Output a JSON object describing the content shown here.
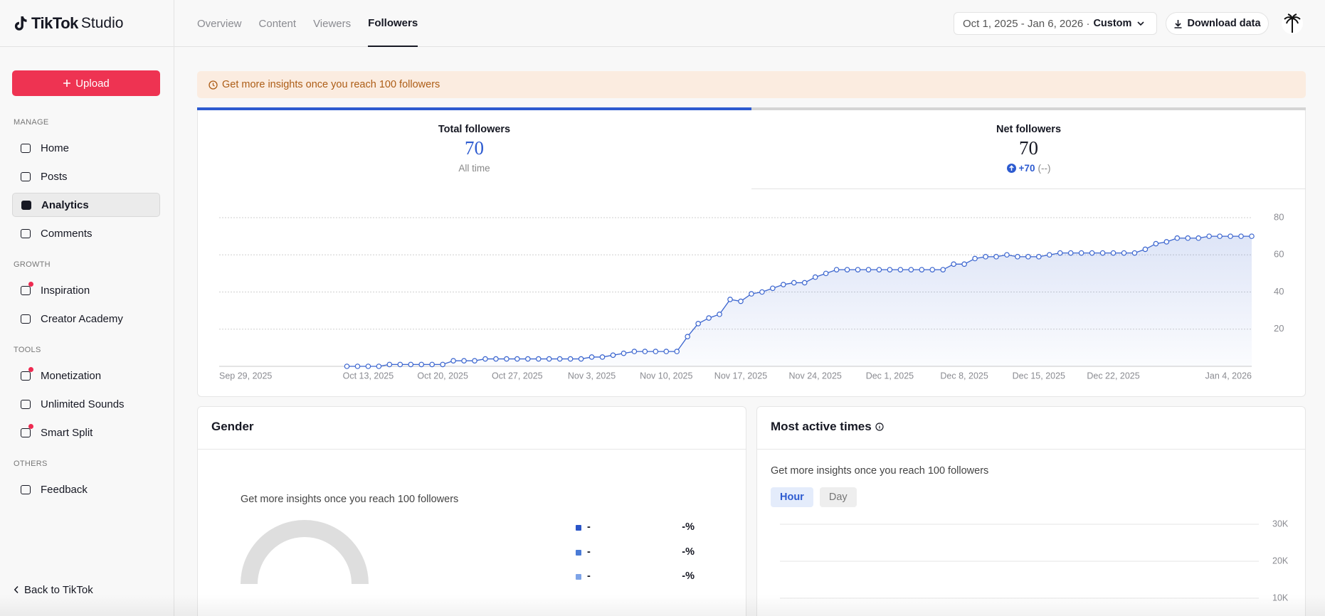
{
  "header": {
    "brand": "TikTok",
    "brand_suffix": "Studio",
    "tabs": [
      "Overview",
      "Content",
      "Viewers",
      "Followers"
    ],
    "active_tab": 3,
    "date_range": "Oct 1, 2025 - Jan 6, 2026 ·",
    "range_type": "Custom",
    "download": "Download data"
  },
  "sidebar": {
    "upload": "Upload",
    "sections": [
      {
        "title": "MANAGE",
        "items": [
          {
            "label": "Home"
          },
          {
            "label": "Posts"
          },
          {
            "label": "Analytics",
            "active": true
          },
          {
            "label": "Comments"
          }
        ]
      },
      {
        "title": "GROWTH",
        "items": [
          {
            "label": "Inspiration",
            "badge": true
          },
          {
            "label": "Creator Academy"
          }
        ]
      },
      {
        "title": "TOOLS",
        "items": [
          {
            "label": "Monetization",
            "badge": true
          },
          {
            "label": "Unlimited Sounds"
          },
          {
            "label": "Smart Split",
            "badge": true
          }
        ]
      },
      {
        "title": "OTHERS",
        "items": [
          {
            "label": "Feedback"
          }
        ]
      }
    ],
    "back": "Back to TikTok"
  },
  "banner": "Get more insights once you reach 100 followers",
  "metrics": [
    {
      "label": "Total followers",
      "value": 70,
      "note": "All time"
    },
    {
      "label": "Net followers",
      "value": 70,
      "change": "+70",
      "comparison": "(--)"
    }
  ],
  "active_metric": 0,
  "gender": {
    "title": "Gender",
    "message": "Get more insights once you reach 100 followers",
    "legend": [
      {
        "label": "-",
        "value": "-%",
        "color": "#2a55c8"
      },
      {
        "label": "-",
        "value": "-%",
        "color": "#4a7bd6"
      },
      {
        "label": "-",
        "value": "-%",
        "color": "#7ea4e8"
      }
    ]
  },
  "active_times": {
    "title": "Most active times",
    "message": "Get more insights once you reach 100 followers",
    "buttons": [
      "Hour",
      "Day"
    ],
    "active_button": 0
  },
  "chart_data": [
    {
      "type": "line",
      "color": "#3b65cf",
      "grid": true,
      "ylim": [
        0,
        80
      ],
      "yticks": [
        20,
        40,
        60,
        80
      ],
      "categories": [
        "Sep 29, 2025",
        null,
        null,
        null,
        null,
        null,
        null,
        null,
        null,
        null,
        null,
        null,
        null,
        null,
        "Oct 13, 2025",
        null,
        null,
        null,
        null,
        null,
        null,
        "Oct 20, 2025",
        null,
        null,
        null,
        null,
        null,
        null,
        "Oct 27, 2025",
        null,
        null,
        null,
        null,
        null,
        null,
        "Nov 3, 2025",
        null,
        null,
        null,
        null,
        null,
        null,
        "Nov 10, 2025",
        null,
        null,
        null,
        null,
        null,
        null,
        "Nov 17, 2025",
        null,
        null,
        null,
        null,
        null,
        null,
        "Nov 24, 2025",
        null,
        null,
        null,
        null,
        null,
        null,
        "Dec 1, 2025",
        null,
        null,
        null,
        null,
        null,
        null,
        "Dec 8, 2025",
        null,
        null,
        null,
        null,
        null,
        null,
        "Dec 15, 2025",
        null,
        null,
        null,
        null,
        null,
        null,
        "Dec 22, 2025",
        null,
        null,
        null,
        null,
        null,
        null,
        null,
        null,
        null,
        null,
        null,
        null,
        "Jan 4, 2026"
      ],
      "values": [
        null,
        null,
        null,
        null,
        null,
        null,
        null,
        null,
        null,
        null,
        null,
        null,
        0,
        0,
        0,
        0,
        1,
        1,
        1,
        1,
        1,
        1,
        3,
        3,
        3,
        4,
        4,
        4,
        4,
        4,
        4,
        4,
        4,
        4,
        4,
        5,
        5,
        6,
        7,
        8,
        8,
        8,
        8,
        8,
        16,
        23,
        26,
        28,
        36,
        35,
        39,
        40,
        42,
        44,
        45,
        45,
        48,
        50,
        52,
        52,
        52,
        52,
        52,
        52,
        52,
        52,
        52,
        52,
        52,
        55,
        55,
        58,
        59,
        59,
        60,
        59,
        59,
        59,
        60,
        61,
        61,
        61,
        61,
        61,
        61,
        61,
        61,
        63,
        66,
        67,
        69,
        69,
        69,
        70,
        70,
        70,
        70,
        70
      ]
    },
    {
      "type": "bar",
      "grid": true,
      "ylim": [
        0,
        30000
      ],
      "yticks": [
        {
          "value": 10000,
          "label": "10K"
        },
        {
          "value": 20000,
          "label": "20K"
        },
        {
          "value": 30000,
          "label": "30K"
        }
      ]
    }
  ]
}
